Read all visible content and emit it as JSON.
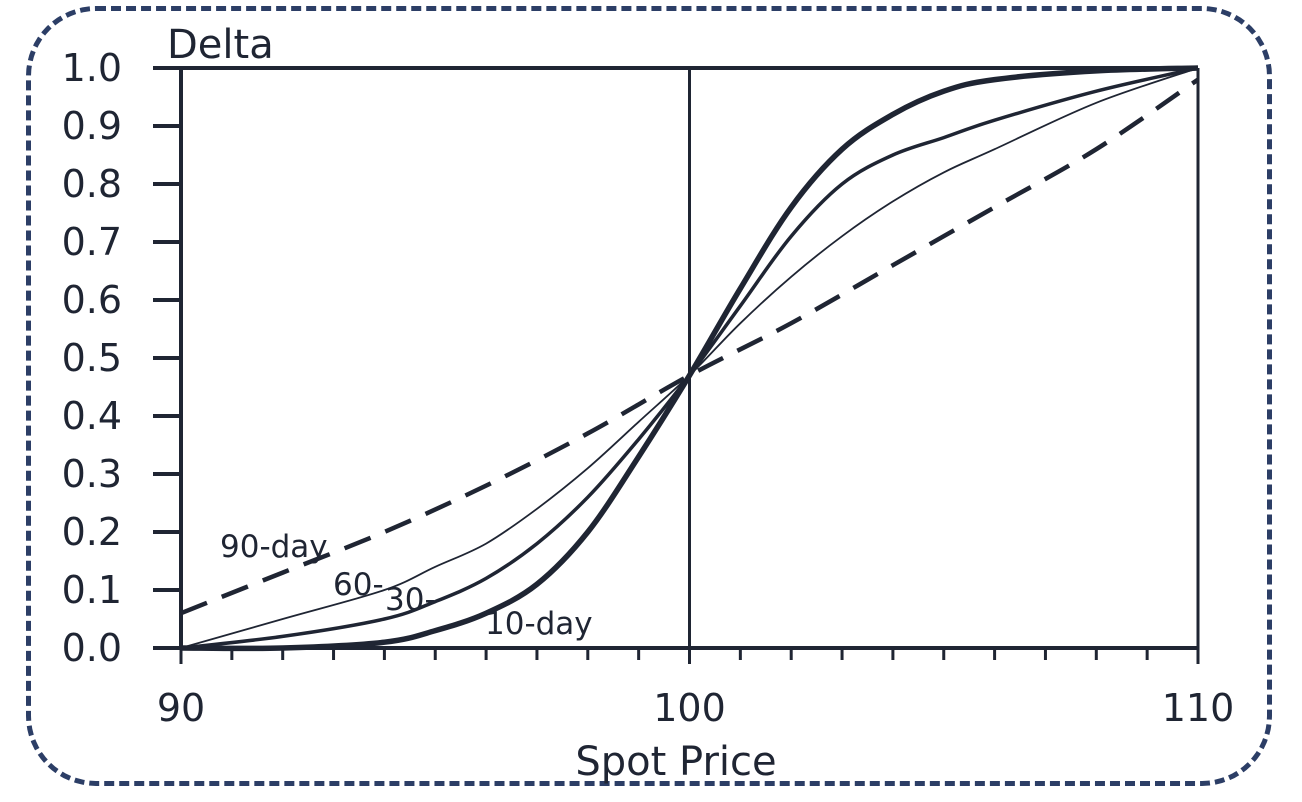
{
  "chart_data": {
    "type": "line",
    "title": "",
    "ylabel": "Delta",
    "xlabel": "Spot Price",
    "xlim": [
      90,
      110
    ],
    "ylim": [
      0,
      1
    ],
    "x_ticks": [
      90,
      100,
      110
    ],
    "y_ticks": [
      "0.0",
      "0.1",
      "0.2",
      "0.3",
      "0.4",
      "0.5",
      "0.6",
      "0.7",
      "0.8",
      "0.9",
      "1.0"
    ],
    "reference_line_x": 100,
    "series": [
      {
        "name": "10-day",
        "style": "solid-thick",
        "x": [
          90,
          92,
          94,
          95,
          96,
          97,
          98,
          99,
          100,
          101,
          102,
          103,
          104,
          105,
          106,
          108,
          110
        ],
        "y": [
          0.0,
          0.0,
          0.01,
          0.03,
          0.06,
          0.11,
          0.2,
          0.33,
          0.47,
          0.62,
          0.76,
          0.86,
          0.92,
          0.96,
          0.98,
          0.995,
          1.0
        ]
      },
      {
        "name": "30-",
        "style": "solid-medium",
        "x": [
          90,
          92,
          94,
          95,
          96,
          97,
          98,
          99,
          100,
          101,
          102,
          103,
          104,
          105,
          106,
          108,
          110
        ],
        "y": [
          0.0,
          0.02,
          0.05,
          0.08,
          0.12,
          0.18,
          0.26,
          0.36,
          0.47,
          0.59,
          0.71,
          0.8,
          0.85,
          0.88,
          0.91,
          0.96,
          1.0
        ]
      },
      {
        "name": "60-",
        "style": "solid-thin",
        "x": [
          90,
          92,
          94,
          95,
          96,
          97,
          98,
          99,
          100,
          101,
          102,
          103,
          104,
          105,
          106,
          108,
          110
        ],
        "y": [
          0.0,
          0.05,
          0.1,
          0.14,
          0.18,
          0.24,
          0.31,
          0.39,
          0.47,
          0.56,
          0.64,
          0.71,
          0.77,
          0.82,
          0.86,
          0.94,
          1.0
        ]
      },
      {
        "name": "90-day",
        "style": "dashed",
        "x": [
          90,
          92,
          94,
          96,
          98,
          100,
          102,
          104,
          106,
          108,
          110
        ],
        "y": [
          0.06,
          0.13,
          0.2,
          0.28,
          0.37,
          0.47,
          0.56,
          0.66,
          0.76,
          0.86,
          0.98
        ]
      }
    ]
  }
}
